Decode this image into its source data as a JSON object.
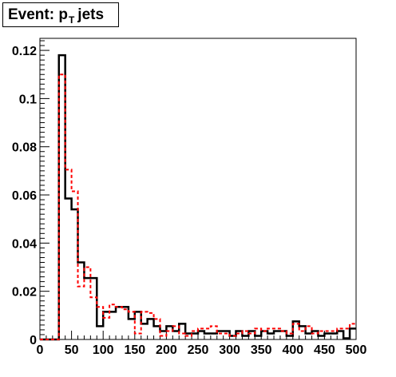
{
  "title": {
    "main": "Event: p",
    "sub": "T",
    "rest": "jets"
  },
  "chart_data": {
    "type": "line",
    "title": "Event: p_T jets",
    "xlabel": "",
    "ylabel": "",
    "xlim": [
      0,
      500
    ],
    "ylim": [
      0,
      0.125
    ],
    "grid": false,
    "legend": "none",
    "x_ticks": [
      0,
      50,
      100,
      150,
      200,
      250,
      300,
      350,
      400,
      450,
      500
    ],
    "x_tick_labels": [
      "0",
      "50",
      "100",
      "150",
      "200",
      "250",
      "300",
      "350",
      "400",
      "450",
      "500"
    ],
    "y_ticks": [
      0,
      0.02,
      0.04,
      0.06,
      0.08,
      0.1,
      0.12
    ],
    "y_tick_labels": [
      "0",
      "0.02",
      "0.04",
      "0.06",
      "0.08",
      "0.1",
      "0.12"
    ],
    "bin_edges": [
      0,
      10,
      20,
      30,
      40,
      50,
      60,
      70,
      80,
      90,
      100,
      110,
      120,
      130,
      140,
      150,
      160,
      170,
      180,
      190,
      200,
      210,
      220,
      230,
      240,
      250,
      260,
      270,
      280,
      290,
      300,
      310,
      320,
      330,
      340,
      350,
      360,
      370,
      380,
      390,
      400,
      410,
      420,
      430,
      440,
      450,
      460,
      470,
      480,
      490,
      500
    ],
    "series": [
      {
        "style": "solid",
        "color": "#000000",
        "values": [
          0,
          0,
          0,
          0.118,
          0.0585,
          0.054,
          0.032,
          0.0255,
          0.0255,
          0.0055,
          0.0115,
          0.0115,
          0.0135,
          0.0135,
          0.0085,
          0.0115,
          0.0065,
          0.0085,
          0.0055,
          0.0035,
          0.0055,
          0.0035,
          0.0065,
          0.0025,
          0.0025,
          0.0035,
          0.0025,
          0.0025,
          0.0035,
          0.0035,
          0.0015,
          0.0035,
          0.0015,
          0.0035,
          0.0015,
          0.0035,
          0.0025,
          0.0035,
          0.0035,
          0.0015,
          0.0075,
          0.0055,
          0.0025,
          0.0035,
          0.0015,
          0.0025,
          0.0025,
          0.0035,
          0.0005,
          0.0045
        ]
      },
      {
        "style": "dashed",
        "color": "#ff0000",
        "values": [
          0,
          0,
          0,
          0.11,
          0.0705,
          0.0615,
          0.022,
          0.03,
          0.0175,
          0.0135,
          0.009,
          0.0145,
          0.0135,
          0.0125,
          0.0115,
          0.0025,
          0.0115,
          0.011,
          0.0085,
          0.0015,
          0.0035,
          0.0055,
          0.0025,
          0.0015,
          0.0035,
          0.0045,
          0.0045,
          0.0055,
          0.0025,
          0.0025,
          0.0015,
          0.0025,
          0.0035,
          0.0025,
          0.0045,
          0.0035,
          0.0045,
          0.0045,
          0.0035,
          0.0025,
          0.0065,
          0.0035,
          0.0055,
          0.0025,
          0.0035,
          0.0035,
          0.0035,
          0.0045,
          0.0045,
          0.0065
        ]
      }
    ]
  }
}
